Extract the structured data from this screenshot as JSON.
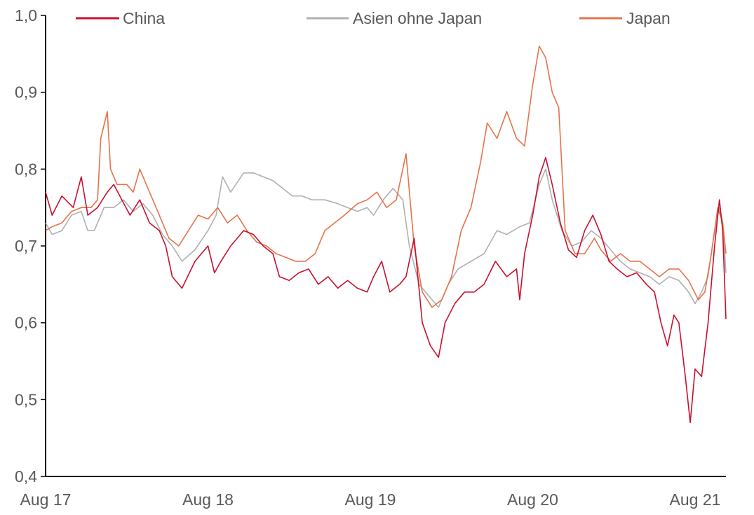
{
  "chart_data": {
    "type": "line",
    "title": "",
    "xlabel": "",
    "ylabel": "",
    "ylim": [
      0.4,
      1.0
    ],
    "yticks": [
      "0,4",
      "0,5",
      "0,6",
      "0,7",
      "0,8",
      "0,9",
      "1,0"
    ],
    "yticks_values": [
      0.4,
      0.5,
      0.6,
      0.7,
      0.8,
      0.9,
      1.0
    ],
    "xticks": [
      "Aug 17",
      "Aug 18",
      "Aug 19",
      "Aug 20",
      "Aug 21"
    ],
    "xticks_values": [
      2017.58,
      2018.58,
      2019.58,
      2020.58,
      2021.58
    ],
    "xlim": [
      2017.58,
      2021.77
    ],
    "grid": false,
    "legend_position": "top",
    "series": [
      {
        "name": "China",
        "color": "#c8102e",
        "points": [
          [
            2017.58,
            0.77
          ],
          [
            2017.62,
            0.74
          ],
          [
            2017.68,
            0.765
          ],
          [
            2017.75,
            0.75
          ],
          [
            2017.8,
            0.79
          ],
          [
            2017.84,
            0.74
          ],
          [
            2017.9,
            0.75
          ],
          [
            2017.96,
            0.77
          ],
          [
            2018.0,
            0.78
          ],
          [
            2018.05,
            0.76
          ],
          [
            2018.1,
            0.74
          ],
          [
            2018.16,
            0.76
          ],
          [
            2018.22,
            0.73
          ],
          [
            2018.28,
            0.72
          ],
          [
            2018.32,
            0.7
          ],
          [
            2018.36,
            0.66
          ],
          [
            2018.42,
            0.645
          ],
          [
            2018.5,
            0.68
          ],
          [
            2018.58,
            0.7
          ],
          [
            2018.62,
            0.665
          ],
          [
            2018.66,
            0.68
          ],
          [
            2018.72,
            0.7
          ],
          [
            2018.8,
            0.72
          ],
          [
            2018.86,
            0.715
          ],
          [
            2018.92,
            0.7
          ],
          [
            2018.98,
            0.69
          ],
          [
            2019.02,
            0.66
          ],
          [
            2019.08,
            0.655
          ],
          [
            2019.14,
            0.665
          ],
          [
            2019.2,
            0.67
          ],
          [
            2019.26,
            0.65
          ],
          [
            2019.32,
            0.66
          ],
          [
            2019.38,
            0.645
          ],
          [
            2019.44,
            0.655
          ],
          [
            2019.5,
            0.645
          ],
          [
            2019.56,
            0.64
          ],
          [
            2019.6,
            0.66
          ],
          [
            2019.65,
            0.68
          ],
          [
            2019.7,
            0.64
          ],
          [
            2019.76,
            0.65
          ],
          [
            2019.8,
            0.66
          ],
          [
            2019.85,
            0.71
          ],
          [
            2019.9,
            0.6
          ],
          [
            2019.95,
            0.57
          ],
          [
            2020.0,
            0.555
          ],
          [
            2020.04,
            0.6
          ],
          [
            2020.1,
            0.625
          ],
          [
            2020.16,
            0.64
          ],
          [
            2020.22,
            0.64
          ],
          [
            2020.28,
            0.65
          ],
          [
            2020.35,
            0.68
          ],
          [
            2020.42,
            0.66
          ],
          [
            2020.48,
            0.67
          ],
          [
            2020.5,
            0.63
          ],
          [
            2020.53,
            0.69
          ],
          [
            2020.58,
            0.74
          ],
          [
            2020.62,
            0.79
          ],
          [
            2020.66,
            0.815
          ],
          [
            2020.7,
            0.78
          ],
          [
            2020.75,
            0.73
          ],
          [
            2020.8,
            0.695
          ],
          [
            2020.85,
            0.685
          ],
          [
            2020.9,
            0.72
          ],
          [
            2020.95,
            0.74
          ],
          [
            2021.0,
            0.715
          ],
          [
            2021.05,
            0.68
          ],
          [
            2021.1,
            0.67
          ],
          [
            2021.16,
            0.66
          ],
          [
            2021.22,
            0.665
          ],
          [
            2021.28,
            0.65
          ],
          [
            2021.33,
            0.64
          ],
          [
            2021.37,
            0.6
          ],
          [
            2021.41,
            0.57
          ],
          [
            2021.45,
            0.61
          ],
          [
            2021.48,
            0.6
          ],
          [
            2021.52,
            0.53
          ],
          [
            2021.55,
            0.47
          ],
          [
            2021.58,
            0.54
          ],
          [
            2021.62,
            0.53
          ],
          [
            2021.66,
            0.6
          ],
          [
            2021.7,
            0.7
          ],
          [
            2021.73,
            0.76
          ],
          [
            2021.75,
            0.72
          ],
          [
            2021.77,
            0.605
          ]
        ]
      },
      {
        "name": "Asien ohne Japan",
        "color": "#b0b0b0",
        "points": [
          [
            2017.58,
            0.73
          ],
          [
            2017.62,
            0.715
          ],
          [
            2017.68,
            0.72
          ],
          [
            2017.74,
            0.74
          ],
          [
            2017.8,
            0.745
          ],
          [
            2017.84,
            0.72
          ],
          [
            2017.88,
            0.72
          ],
          [
            2017.94,
            0.75
          ],
          [
            2018.0,
            0.75
          ],
          [
            2018.06,
            0.76
          ],
          [
            2018.12,
            0.745
          ],
          [
            2018.18,
            0.755
          ],
          [
            2018.24,
            0.74
          ],
          [
            2018.3,
            0.715
          ],
          [
            2018.36,
            0.7
          ],
          [
            2018.42,
            0.68
          ],
          [
            2018.5,
            0.695
          ],
          [
            2018.58,
            0.72
          ],
          [
            2018.63,
            0.74
          ],
          [
            2018.67,
            0.79
          ],
          [
            2018.72,
            0.77
          ],
          [
            2018.8,
            0.795
          ],
          [
            2018.86,
            0.795
          ],
          [
            2018.92,
            0.79
          ],
          [
            2018.98,
            0.785
          ],
          [
            2019.04,
            0.775
          ],
          [
            2019.1,
            0.765
          ],
          [
            2019.16,
            0.765
          ],
          [
            2019.22,
            0.76
          ],
          [
            2019.3,
            0.76
          ],
          [
            2019.38,
            0.755
          ],
          [
            2019.44,
            0.75
          ],
          [
            2019.5,
            0.745
          ],
          [
            2019.56,
            0.75
          ],
          [
            2019.6,
            0.74
          ],
          [
            2019.66,
            0.76
          ],
          [
            2019.72,
            0.775
          ],
          [
            2019.78,
            0.76
          ],
          [
            2019.82,
            0.7
          ],
          [
            2019.88,
            0.65
          ],
          [
            2019.94,
            0.635
          ],
          [
            2020.0,
            0.62
          ],
          [
            2020.06,
            0.65
          ],
          [
            2020.12,
            0.67
          ],
          [
            2020.2,
            0.68
          ],
          [
            2020.28,
            0.69
          ],
          [
            2020.36,
            0.72
          ],
          [
            2020.42,
            0.715
          ],
          [
            2020.5,
            0.725
          ],
          [
            2020.56,
            0.73
          ],
          [
            2020.62,
            0.78
          ],
          [
            2020.66,
            0.8
          ],
          [
            2020.7,
            0.76
          ],
          [
            2020.76,
            0.72
          ],
          [
            2020.82,
            0.7
          ],
          [
            2020.88,
            0.705
          ],
          [
            2020.94,
            0.72
          ],
          [
            2021.0,
            0.71
          ],
          [
            2021.06,
            0.695
          ],
          [
            2021.12,
            0.68
          ],
          [
            2021.18,
            0.67
          ],
          [
            2021.24,
            0.665
          ],
          [
            2021.3,
            0.66
          ],
          [
            2021.36,
            0.65
          ],
          [
            2021.42,
            0.66
          ],
          [
            2021.48,
            0.655
          ],
          [
            2021.54,
            0.64
          ],
          [
            2021.58,
            0.625
          ],
          [
            2021.62,
            0.64
          ],
          [
            2021.66,
            0.66
          ],
          [
            2021.7,
            0.72
          ],
          [
            2021.73,
            0.75
          ],
          [
            2021.75,
            0.73
          ],
          [
            2021.77,
            0.665
          ]
        ]
      },
      {
        "name": "Japan",
        "color": "#e5734a",
        "points": [
          [
            2017.58,
            0.72
          ],
          [
            2017.62,
            0.725
          ],
          [
            2017.68,
            0.73
          ],
          [
            2017.74,
            0.745
          ],
          [
            2017.8,
            0.75
          ],
          [
            2017.86,
            0.75
          ],
          [
            2017.9,
            0.76
          ],
          [
            2017.92,
            0.84
          ],
          [
            2017.96,
            0.875
          ],
          [
            2017.98,
            0.8
          ],
          [
            2018.02,
            0.78
          ],
          [
            2018.08,
            0.78
          ],
          [
            2018.12,
            0.77
          ],
          [
            2018.16,
            0.8
          ],
          [
            2018.22,
            0.77
          ],
          [
            2018.28,
            0.74
          ],
          [
            2018.34,
            0.71
          ],
          [
            2018.4,
            0.7
          ],
          [
            2018.46,
            0.72
          ],
          [
            2018.52,
            0.74
          ],
          [
            2018.58,
            0.735
          ],
          [
            2018.64,
            0.75
          ],
          [
            2018.7,
            0.73
          ],
          [
            2018.76,
            0.74
          ],
          [
            2018.82,
            0.72
          ],
          [
            2018.88,
            0.705
          ],
          [
            2018.94,
            0.7
          ],
          [
            2019.0,
            0.69
          ],
          [
            2019.06,
            0.685
          ],
          [
            2019.12,
            0.68
          ],
          [
            2019.18,
            0.68
          ],
          [
            2019.24,
            0.69
          ],
          [
            2019.3,
            0.72
          ],
          [
            2019.36,
            0.73
          ],
          [
            2019.42,
            0.74
          ],
          [
            2019.5,
            0.755
          ],
          [
            2019.56,
            0.76
          ],
          [
            2019.62,
            0.77
          ],
          [
            2019.68,
            0.75
          ],
          [
            2019.74,
            0.76
          ],
          [
            2019.8,
            0.82
          ],
          [
            2019.85,
            0.7
          ],
          [
            2019.9,
            0.64
          ],
          [
            2019.96,
            0.62
          ],
          [
            2020.02,
            0.63
          ],
          [
            2020.08,
            0.66
          ],
          [
            2020.14,
            0.72
          ],
          [
            2020.2,
            0.75
          ],
          [
            2020.26,
            0.81
          ],
          [
            2020.3,
            0.86
          ],
          [
            2020.36,
            0.84
          ],
          [
            2020.42,
            0.875
          ],
          [
            2020.48,
            0.84
          ],
          [
            2020.53,
            0.83
          ],
          [
            2020.58,
            0.91
          ],
          [
            2020.62,
            0.96
          ],
          [
            2020.66,
            0.945
          ],
          [
            2020.7,
            0.9
          ],
          [
            2020.74,
            0.88
          ],
          [
            2020.78,
            0.72
          ],
          [
            2020.84,
            0.69
          ],
          [
            2020.9,
            0.69
          ],
          [
            2020.96,
            0.71
          ],
          [
            2021.0,
            0.695
          ],
          [
            2021.06,
            0.68
          ],
          [
            2021.12,
            0.69
          ],
          [
            2021.18,
            0.68
          ],
          [
            2021.24,
            0.68
          ],
          [
            2021.3,
            0.67
          ],
          [
            2021.36,
            0.66
          ],
          [
            2021.42,
            0.67
          ],
          [
            2021.48,
            0.67
          ],
          [
            2021.54,
            0.655
          ],
          [
            2021.6,
            0.63
          ],
          [
            2021.64,
            0.64
          ],
          [
            2021.68,
            0.69
          ],
          [
            2021.72,
            0.75
          ],
          [
            2021.75,
            0.73
          ],
          [
            2021.77,
            0.69
          ]
        ]
      }
    ]
  }
}
